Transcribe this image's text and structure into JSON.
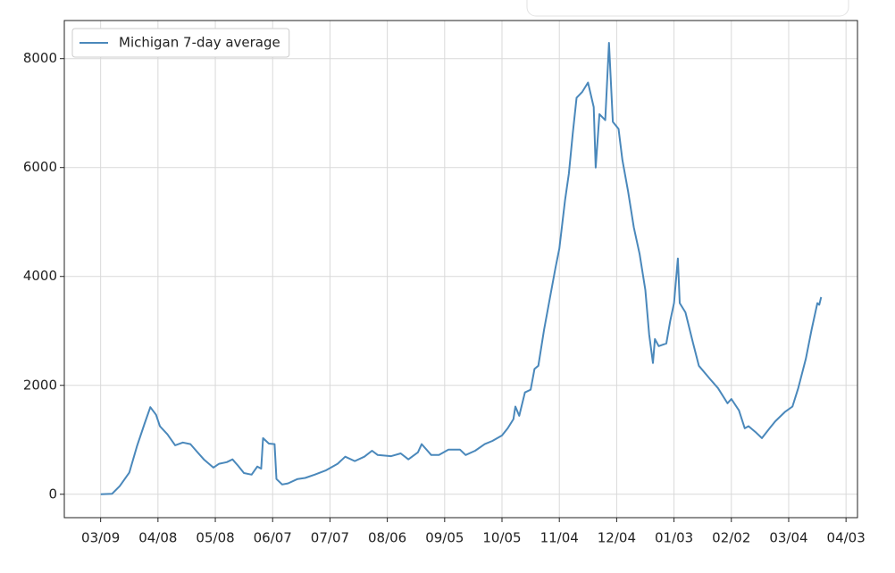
{
  "chart_data": {
    "type": "line",
    "x": [
      "03/09",
      "03/15",
      "03/19",
      "03/24",
      "03/28",
      "04/01",
      "04/04",
      "04/07",
      "04/09",
      "04/13",
      "04/17",
      "04/21",
      "04/25",
      "04/28",
      "05/02",
      "05/07",
      "05/10",
      "05/14",
      "05/17",
      "05/20",
      "05/23",
      "05/27",
      "05/30",
      "06/01",
      "06/02",
      "06/05",
      "06/08",
      "06/09",
      "06/12",
      "06/15",
      "06/20",
      "06/24",
      "06/29",
      "07/05",
      "07/11",
      "07/15",
      "07/20",
      "07/25",
      "07/29",
      "08/01",
      "08/08",
      "08/13",
      "08/17",
      "08/22",
      "08/24",
      "08/29",
      "09/02",
      "09/07",
      "09/13",
      "09/16",
      "09/21",
      "09/26",
      "09/30",
      "10/05",
      "10/08",
      "10/11",
      "10/12",
      "10/14",
      "10/17",
      "10/20",
      "10/22",
      "10/24",
      "10/27",
      "10/30",
      "11/02",
      "11/04",
      "11/07",
      "11/09",
      "11/11",
      "11/13",
      "11/16",
      "11/19",
      "11/22",
      "11/23",
      "11/25",
      "11/28",
      "11/30",
      "12/02",
      "12/05",
      "12/07",
      "12/10",
      "12/13",
      "12/16",
      "12/19",
      "12/21",
      "12/23",
      "12/24",
      "12/26",
      "12/30",
      "01/01",
      "01/03",
      "01/05",
      "01/06",
      "01/09",
      "01/13",
      "01/16",
      "01/22",
      "01/26",
      "01/31",
      "02/02",
      "02/06",
      "02/09",
      "02/11",
      "02/15",
      "02/18",
      "02/22",
      "02/25",
      "03/02",
      "03/06",
      "03/09",
      "03/13",
      "03/16",
      "03/19",
      "03/20",
      "03/21"
    ],
    "series": [
      {
        "name": "Michigan 7-day average",
        "color": "#4a88bb",
        "values": [
          0,
          10,
          150,
          400,
          880,
          1300,
          1600,
          1460,
          1250,
          1100,
          900,
          950,
          920,
          800,
          640,
          490,
          560,
          590,
          640,
          520,
          390,
          360,
          510,
          470,
          1030,
          930,
          920,
          280,
          180,
          200,
          280,
          300,
          360,
          440,
          560,
          690,
          610,
          690,
          800,
          720,
          700,
          750,
          640,
          770,
          920,
          720,
          720,
          820,
          820,
          720,
          800,
          920,
          980,
          1080,
          1210,
          1380,
          1610,
          1440,
          1870,
          1920,
          2300,
          2360,
          3020,
          3590,
          4160,
          4510,
          5400,
          5890,
          6620,
          7280,
          7390,
          7560,
          7110,
          6000,
          6980,
          6870,
          8290,
          6840,
          6710,
          6140,
          5560,
          4900,
          4410,
          3750,
          2930,
          2410,
          2850,
          2720,
          2770,
          3180,
          3510,
          4330,
          3510,
          3340,
          2770,
          2360,
          2110,
          1950,
          1670,
          1750,
          1540,
          1210,
          1250,
          1130,
          1030,
          1210,
          1340,
          1510,
          1610,
          1950,
          2490,
          3020,
          3510,
          3480,
          3620
        ]
      }
    ],
    "xlim": [
      "02/19",
      "04/09"
    ],
    "xticks": [
      "03/09",
      "04/08",
      "05/08",
      "06/07",
      "07/07",
      "08/06",
      "09/05",
      "10/05",
      "11/04",
      "12/04",
      "01/03",
      "02/02",
      "03/04",
      "04/03"
    ],
    "ylim": [
      -430,
      8700
    ],
    "yticks": [
      0,
      2000,
      4000,
      6000,
      8000
    ],
    "grid": true,
    "legend": "upper left"
  }
}
